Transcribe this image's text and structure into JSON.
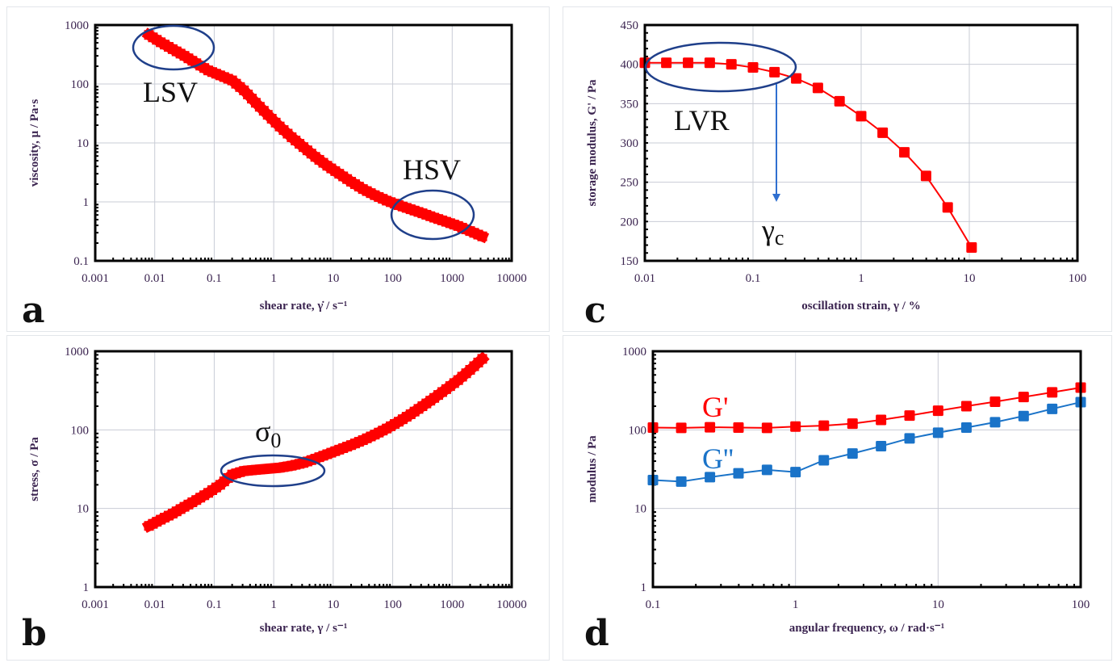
{
  "figure": {
    "panels": [
      "a",
      "b",
      "c",
      "d"
    ]
  },
  "colors": {
    "red_series": "#ff0000",
    "blue_series": "#1a73c8",
    "annotation_ellipse": "#1f3f8a",
    "arrow": "#2f6fd0",
    "text": "#3b2450"
  },
  "chart_data": [
    {
      "id": "a",
      "panel_label": "a",
      "type": "line",
      "xscale": "log",
      "yscale": "log",
      "xlabel": "shear rate, γ̇ / s⁻¹",
      "ylabel": "viscosity, μ / Pa·s",
      "xlim": [
        0.001,
        10000
      ],
      "ylim": [
        0.1,
        1000
      ],
      "xticks": [
        "0.001",
        "0.01",
        "0.1",
        "1",
        "10",
        "100",
        "1000",
        "10000"
      ],
      "yticks": [
        "0.1",
        "1",
        "10",
        "100",
        "1000"
      ],
      "grid": true,
      "series": [
        {
          "name": "viscosity",
          "color": "#ff0000",
          "x": [
            0.008,
            0.0126,
            0.02,
            0.0316,
            0.05,
            0.0794,
            0.126,
            0.2,
            0.316,
            0.5,
            0.794,
            1.26,
            2,
            3.16,
            5,
            7.94,
            12.6,
            20,
            31.6,
            50,
            79.4,
            126,
            200,
            316,
            500,
            794,
            1260,
            2000,
            3200
          ],
          "y": [
            680,
            510,
            390,
            300,
            225,
            170,
            140,
            115,
            78,
            48,
            30,
            19,
            12.5,
            8.5,
            5.8,
            4.1,
            3.0,
            2.2,
            1.65,
            1.3,
            1.05,
            0.88,
            0.75,
            0.64,
            0.54,
            0.46,
            0.39,
            0.32,
            0.26
          ]
        }
      ],
      "annotations": [
        {
          "text": "LSV",
          "target_x": 0.02,
          "target_y": 400
        },
        {
          "text": "HSV",
          "target_x": 400,
          "target_y": 0.6
        }
      ]
    },
    {
      "id": "b",
      "panel_label": "b",
      "type": "line",
      "xscale": "log",
      "yscale": "log",
      "xlabel": "shear rate, γ / s⁻¹",
      "ylabel": "stress, σ / Pa",
      "xlim": [
        0.001,
        10000
      ],
      "ylim": [
        1,
        1000
      ],
      "xticks": [
        "0.001",
        "0.01",
        "0.1",
        "1",
        "10",
        "100",
        "1000",
        "10000"
      ],
      "yticks": [
        "1",
        "10",
        "100",
        "1000"
      ],
      "grid": true,
      "series": [
        {
          "name": "stress",
          "color": "#ff0000",
          "x": [
            0.008,
            0.0126,
            0.02,
            0.0316,
            0.05,
            0.0794,
            0.126,
            0.2,
            0.316,
            0.5,
            0.794,
            1.26,
            2,
            3.16,
            5,
            7.94,
            12.6,
            20,
            31.6,
            50,
            79.4,
            126,
            200,
            316,
            500,
            794,
            1260,
            2000,
            3200
          ],
          "y": [
            6,
            7.2,
            8.6,
            10.5,
            12.8,
            15.8,
            20,
            27,
            30,
            31,
            32,
            33,
            35,
            38,
            43,
            49,
            56,
            64,
            74,
            87,
            104,
            127,
            158,
            200,
            255,
            330,
            430,
            580,
            800
          ]
        }
      ],
      "annotations": [
        {
          "text": "σ₀",
          "target_x": 1,
          "target_y": 32
        }
      ]
    },
    {
      "id": "c",
      "panel_label": "c",
      "type": "line",
      "xscale": "log",
      "yscale": "linear",
      "xlabel": "oscillation strain, γ / %",
      "ylabel": "storage modulus, G' / Pa",
      "xlim": [
        0.01,
        100
      ],
      "ylim": [
        150,
        450
      ],
      "xticks": [
        "0.01",
        "0.1",
        "1",
        "10",
        "100"
      ],
      "yticks": [
        "150",
        "200",
        "250",
        "300",
        "350",
        "400",
        "450"
      ],
      "grid": true,
      "series": [
        {
          "name": "G'",
          "color": "#ff0000",
          "marker": "square",
          "x": [
            0.01,
            0.0158,
            0.0251,
            0.0398,
            0.0631,
            0.1,
            0.158,
            0.251,
            0.398,
            0.631,
            1,
            1.58,
            2.51,
            3.98,
            6.31,
            10.5
          ],
          "y": [
            402,
            402,
            402,
            402,
            400,
            396,
            390,
            382,
            370,
            353,
            334,
            313,
            288,
            258,
            218,
            167
          ]
        }
      ],
      "annotations": [
        {
          "text": "LVR",
          "target_x": 0.04,
          "target_y": 400
        },
        {
          "text": "γc",
          "target_x": 0.158,
          "target_y": 225
        }
      ]
    },
    {
      "id": "d",
      "panel_label": "d",
      "type": "line",
      "xscale": "log",
      "yscale": "log",
      "xlabel": "angular frequency, ω / rad·s⁻¹",
      "ylabel": "modulus / Pa",
      "xlim": [
        0.1,
        100
      ],
      "ylim": [
        1,
        1000
      ],
      "xticks": [
        "0.1",
        "1",
        "10",
        "100"
      ],
      "yticks": [
        "1",
        "10",
        "100",
        "1000"
      ],
      "grid": true,
      "series": [
        {
          "name": "G'",
          "color": "#ff0000",
          "marker": "square",
          "x": [
            0.1,
            0.158,
            0.251,
            0.398,
            0.631,
            1,
            1.58,
            2.51,
            3.98,
            6.31,
            10,
            15.8,
            25.1,
            39.8,
            63.1,
            100
          ],
          "y": [
            107,
            106,
            108,
            107,
            106,
            110,
            113,
            120,
            134,
            152,
            175,
            200,
            228,
            262,
            300,
            345
          ]
        },
        {
          "name": "G''",
          "color": "#1a73c8",
          "marker": "square",
          "x": [
            0.1,
            0.158,
            0.251,
            0.398,
            0.631,
            1,
            1.58,
            2.51,
            3.98,
            6.31,
            10,
            15.8,
            25.1,
            39.8,
            63.1,
            100
          ],
          "y": [
            23,
            22,
            25,
            28,
            31,
            29,
            41,
            50,
            62,
            78,
            92,
            107,
            125,
            150,
            185,
            225
          ]
        }
      ],
      "legend": [
        {
          "text": "G'",
          "color": "#ff0000"
        },
        {
          "text": "G''",
          "color": "#1a73c8"
        }
      ]
    }
  ]
}
